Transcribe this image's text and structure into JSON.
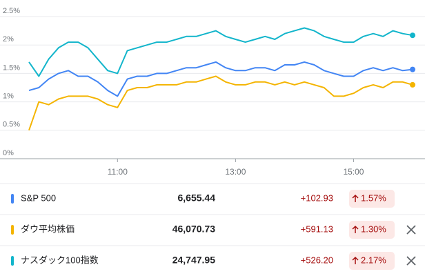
{
  "chart_data": {
    "type": "line",
    "x": [
      570,
      580,
      590,
      600,
      610,
      620,
      630,
      640,
      650,
      660,
      670,
      680,
      690,
      700,
      710,
      720,
      730,
      740,
      750,
      760,
      770,
      780,
      790,
      800,
      810,
      820,
      830,
      840,
      850,
      860,
      870,
      880,
      890,
      900,
      910,
      920,
      930,
      940,
      950,
      960
    ],
    "xlim": [
      570,
      960
    ],
    "xticks": [
      {
        "value": 660,
        "label": "11:00"
      },
      {
        "value": 780,
        "label": "13:00"
      },
      {
        "value": 900,
        "label": "15:00"
      }
    ],
    "ylim": [
      0,
      2.5
    ],
    "yticks": [
      {
        "value": 0,
        "label": "0%"
      },
      {
        "value": 0.5,
        "label": "0.5%"
      },
      {
        "value": 1,
        "label": "1%"
      },
      {
        "value": 1.5,
        "label": "1.5%"
      },
      {
        "value": 2,
        "label": "2%"
      },
      {
        "value": 2.5,
        "label": "2.5%"
      }
    ],
    "grid": true,
    "series": [
      {
        "name": "S&P 500",
        "color": "#4285f4",
        "values": [
          1.2,
          1.25,
          1.4,
          1.5,
          1.55,
          1.45,
          1.45,
          1.35,
          1.2,
          1.1,
          1.4,
          1.45,
          1.45,
          1.5,
          1.5,
          1.55,
          1.6,
          1.6,
          1.65,
          1.7,
          1.6,
          1.55,
          1.55,
          1.6,
          1.6,
          1.55,
          1.65,
          1.65,
          1.7,
          1.65,
          1.55,
          1.5,
          1.45,
          1.45,
          1.55,
          1.6,
          1.55,
          1.6,
          1.55,
          1.57
        ]
      },
      {
        "name": "ダウ平均株価",
        "color": "#f4b400",
        "values": [
          0.5,
          1.0,
          0.95,
          1.05,
          1.1,
          1.1,
          1.1,
          1.05,
          0.95,
          0.9,
          1.2,
          1.25,
          1.25,
          1.3,
          1.3,
          1.3,
          1.35,
          1.35,
          1.4,
          1.45,
          1.35,
          1.3,
          1.3,
          1.35,
          1.35,
          1.3,
          1.35,
          1.3,
          1.35,
          1.3,
          1.25,
          1.1,
          1.1,
          1.15,
          1.25,
          1.3,
          1.25,
          1.35,
          1.35,
          1.3
        ]
      },
      {
        "name": "ナスダック100指数",
        "color": "#12b5cb",
        "values": [
          1.7,
          1.45,
          1.75,
          1.95,
          2.05,
          2.05,
          1.95,
          1.75,
          1.55,
          1.5,
          1.9,
          1.95,
          2.0,
          2.05,
          2.05,
          2.1,
          2.15,
          2.15,
          2.2,
          2.25,
          2.15,
          2.1,
          2.05,
          2.1,
          2.15,
          2.1,
          2.2,
          2.25,
          2.3,
          2.25,
          2.15,
          2.1,
          2.05,
          2.05,
          2.15,
          2.2,
          2.15,
          2.25,
          2.2,
          2.17
        ]
      }
    ]
  },
  "table": {
    "rows": [
      [
        "6,655.44",
        "+102.93",
        "1.57%"
      ],
      [
        "46,070.73",
        "+591.13",
        "1.30%"
      ],
      [
        "24,747.95",
        "+526.20",
        "2.17%"
      ]
    ]
  }
}
